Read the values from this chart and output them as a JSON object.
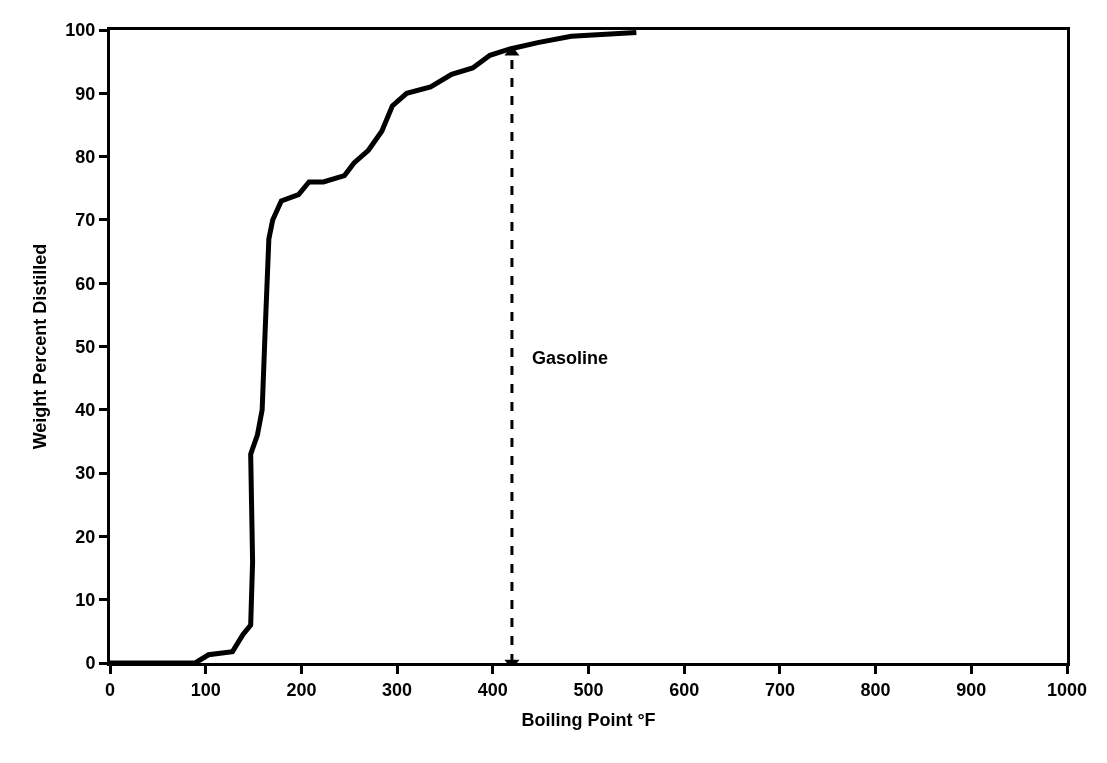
{
  "chart_data": {
    "type": "line",
    "xlabel": "Boiling Point °F",
    "ylabel": "Weight Percent Distilled",
    "xlim": [
      0,
      1000
    ],
    "xticks": [
      0,
      100,
      200,
      300,
      400,
      500,
      600,
      700,
      800,
      900,
      1000
    ],
    "ylim": [
      0,
      100
    ],
    "yticks": [
      0,
      10,
      20,
      30,
      40,
      50,
      60,
      70,
      80,
      90,
      100
    ],
    "series": [
      {
        "color": "#000000",
        "line_style": "solid",
        "marker": "none",
        "x": [
          0,
          89,
          103,
          128,
          139,
          147,
          149,
          147,
          154,
          159,
          162,
          166,
          170,
          179,
          197,
          208,
          223,
          245,
          255,
          270,
          284,
          295,
          310,
          335,
          357,
          379,
          397,
          418,
          447,
          482,
          550
        ],
        "values": [
          0,
          0,
          1.3,
          1.8,
          4.5,
          6,
          16,
          33,
          36,
          40,
          52,
          67,
          70,
          73,
          74,
          76,
          76,
          77,
          79,
          81,
          84,
          88,
          90,
          91,
          93,
          94,
          96,
          97,
          98,
          99,
          99.6
        ]
      },
      {
        "color": "#000000",
        "line_style": "dashed",
        "marker": "triangle",
        "x": [
          420,
          420
        ],
        "values": [
          0,
          96.5
        ]
      }
    ],
    "annotations": [
      "Gasoline"
    ]
  }
}
